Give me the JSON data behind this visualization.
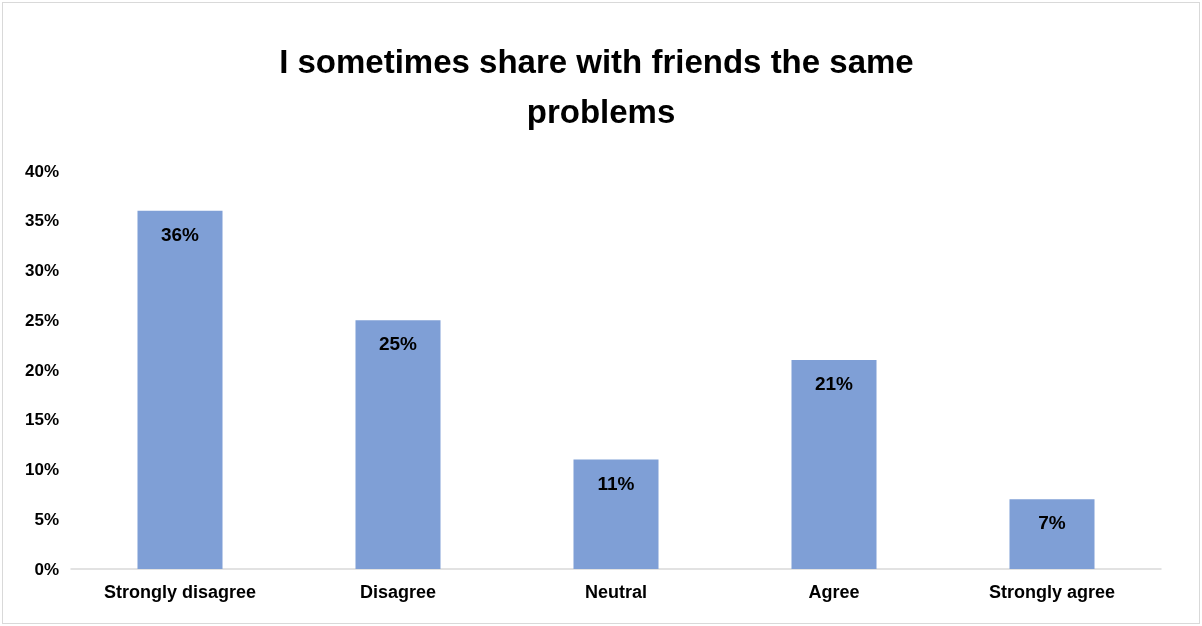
{
  "chart_data": {
    "type": "bar",
    "title": "I sometimes share with friends the same problems",
    "categories": [
      "Strongly disagree",
      "Disagree",
      "Neutral",
      "Agree",
      "Strongly agree"
    ],
    "values": [
      36,
      25,
      11,
      21,
      7
    ],
    "color": "#7f9fd6",
    "value_labels": [
      "36%",
      "25%",
      "11%",
      "21%",
      "7%"
    ],
    "ylim": [
      0,
      40
    ],
    "yticks": [
      {
        "value": 0,
        "label": "0%"
      },
      {
        "value": 5,
        "label": "5%"
      },
      {
        "value": 10,
        "label": "10%"
      },
      {
        "value": 15,
        "label": "15%"
      },
      {
        "value": 20,
        "label": "20%"
      },
      {
        "value": 25,
        "label": "25%"
      },
      {
        "value": 30,
        "label": "30%"
      },
      {
        "value": 35,
        "label": "35%"
      },
      {
        "value": 40,
        "label": "40%"
      }
    ],
    "grid": false
  }
}
